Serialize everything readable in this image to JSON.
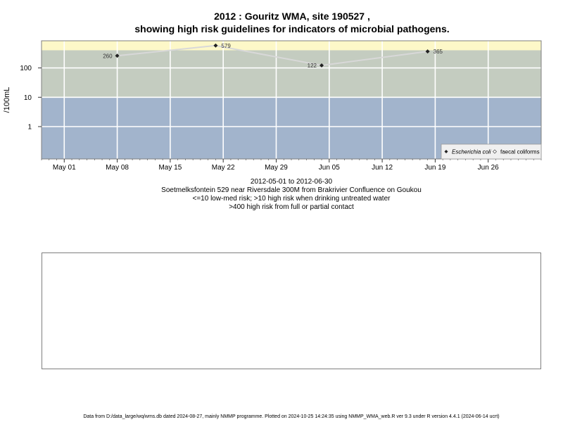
{
  "title_line1": "2012 : Gouritz WMA, site 190527 ,",
  "title_line2": "showing high risk guidelines for indicators of microbial pathogens.",
  "chart_data": {
    "type": "scatter",
    "ylabel": "/100mL",
    "xlabel": "",
    "y_scale": "log",
    "grid": true,
    "x_ticks": [
      "May 01",
      "May 08",
      "May 15",
      "May 22",
      "May 29",
      "Jun 05",
      "Jun 12",
      "Jun 19",
      "Jun 26"
    ],
    "y_ticks": [
      "1",
      "10",
      "100"
    ],
    "series": [
      {
        "name": "Escherichia coli",
        "points": [
          {
            "x": "2012-05-08",
            "y": 260,
            "label": "260"
          },
          {
            "x": "2012-05-21",
            "y": 579,
            "label": "579"
          },
          {
            "x": "2012-06-04",
            "y": 122,
            "label": "122"
          },
          {
            "x": "2012-06-18",
            "y": 365,
            "label": "365"
          }
        ]
      },
      {
        "name": "faecal coliforms",
        "points": []
      }
    ],
    "risk_bands": [
      {
        "from": 0,
        "to": 10,
        "color": "#a2b4cc"
      },
      {
        "from": 10,
        "to": 400,
        "color": "#c4ccc0"
      },
      {
        "from": 400,
        "to": null,
        "color": "#fdf8c8"
      }
    ],
    "legend": "bottom-right",
    "series_line_color": "#d8d8d8",
    "marker_color": "#222222"
  },
  "captions": {
    "range": "2012-05-01 to 2012-06-30",
    "site": "Soetmelksfontein 529 near Riversdale 300M from Brakrivier Confluence on Goukou",
    "risk_low": "<=10 low-med risk; >10 high risk when drinking untreated water",
    "risk_high": ">400 high risk from full or partial contact"
  },
  "footer": "Data from D:/data_large/wq/wms.db dated 2024-08-27, mainly NMMP programme. Plotted on 2024-10-25 14:24:35 using NMMP_WMA_web.R ver 9.3 under R version 4.4.1 (2024-06-14 ucrt)"
}
